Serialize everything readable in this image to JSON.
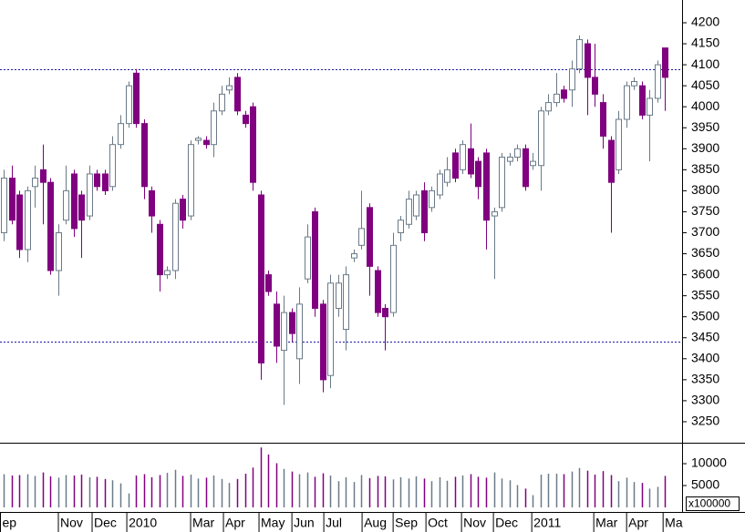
{
  "chart_data": {
    "type": "candlestick",
    "open": [
      3700,
      3830,
      3790,
      3660,
      3810,
      3850,
      3820,
      3610,
      3730,
      3840,
      3790,
      3740,
      3840,
      3840,
      3810,
      3910,
      3960,
      4080,
      3960,
      3800,
      3720,
      3600,
      3610,
      3780,
      3740,
      3920,
      3920,
      3910,
      3990,
      4040,
      4070,
      3980,
      4000,
      3790,
      3600,
      3530,
      3420,
      3510,
      3400,
      3590,
      3750,
      3530,
      3360,
      3520,
      3470,
      3640,
      3670,
      3760,
      3610,
      3520,
      3510,
      3700,
      3720,
      3740,
      3800,
      3760,
      3790,
      3820,
      3890,
      3850,
      3900,
      3870,
      3890,
      3740,
      3760,
      3870,
      3880,
      3900,
      3860,
      3860,
      3990,
      4010,
      4040,
      4040,
      4090,
      4150,
      4070,
      4010,
      3920,
      3850,
      3970,
      4050,
      4050,
      3980,
      4020,
      4140
    ],
    "high": [
      3850,
      3860,
      3800,
      3810,
      3860,
      3910,
      3830,
      3720,
      3860,
      3850,
      3800,
      3860,
      3850,
      3850,
      3930,
      3980,
      4060,
      4090,
      3970,
      3810,
      3730,
      3620,
      3780,
      3790,
      3920,
      3930,
      3930,
      4010,
      4050,
      4070,
      4080,
      3990,
      4010,
      3800,
      3610,
      3560,
      3550,
      3520,
      3570,
      3720,
      3760,
      3540,
      3600,
      3600,
      3620,
      3660,
      3800,
      3770,
      3620,
      3530,
      3700,
      3740,
      3800,
      3800,
      3820,
      3810,
      3850,
      3880,
      3900,
      3920,
      3960,
      3880,
      3900,
      3760,
      3890,
      3890,
      3910,
      3910,
      3890,
      4000,
      4030,
      4080,
      4050,
      4110,
      4170,
      4160,
      4150,
      4030,
      3930,
      3990,
      4060,
      4070,
      4060,
      4040,
      4110,
      4140
    ],
    "low": [
      3680,
      3720,
      3640,
      3630,
      3760,
      3720,
      3600,
      3550,
      3720,
      3690,
      3640,
      3730,
      3800,
      3790,
      3800,
      3900,
      3950,
      3950,
      3780,
      3700,
      3560,
      3590,
      3590,
      3710,
      3730,
      3910,
      3900,
      3880,
      3980,
      4030,
      3980,
      3950,
      3800,
      3350,
      3550,
      3390,
      3290,
      3440,
      3340,
      3580,
      3500,
      3320,
      3330,
      3500,
      3420,
      3630,
      3660,
      3550,
      3500,
      3420,
      3500,
      3680,
      3710,
      3730,
      3680,
      3750,
      3780,
      3810,
      3820,
      3840,
      3830,
      3780,
      3660,
      3590,
      3750,
      3860,
      3870,
      3800,
      3850,
      3800,
      3980,
      4000,
      4010,
      4000,
      4080,
      3980,
      4000,
      3900,
      3700,
      3840,
      3950,
      4040,
      3970,
      3870,
      4010,
      3990
    ],
    "close": [
      3830,
      3730,
      3660,
      3800,
      3830,
      3820,
      3610,
      3700,
      3800,
      3710,
      3730,
      3840,
      3810,
      3800,
      3910,
      3960,
      4050,
      3960,
      3810,
      3740,
      3600,
      3610,
      3770,
      3730,
      3910,
      3925,
      3910,
      3990,
      4030,
      4050,
      3990,
      3960,
      3820,
      3390,
      3560,
      3430,
      3510,
      3460,
      3530,
      3690,
      3520,
      3350,
      3580,
      3580,
      3600,
      3650,
      3710,
      3620,
      3510,
      3500,
      3670,
      3730,
      3780,
      3790,
      3700,
      3800,
      3840,
      3850,
      3830,
      3910,
      3840,
      3810,
      3730,
      3750,
      3880,
      3880,
      3900,
      3810,
      3870,
      3990,
      4010,
      4030,
      4020,
      4090,
      4160,
      4070,
      4030,
      3930,
      3820,
      3970,
      4050,
      4060,
      3980,
      4020,
      4100,
      4070
    ],
    "volume": [
      7600,
      7300,
      7400,
      7600,
      7200,
      8000,
      7100,
      6800,
      7400,
      7300,
      7500,
      6900,
      7000,
      6500,
      6200,
      5500,
      3200,
      7300,
      7600,
      6900,
      7400,
      7900,
      8600,
      7200,
      7500,
      6600,
      6800,
      7300,
      6500,
      5600,
      6500,
      7700,
      9100,
      13700,
      12100,
      10100,
      8800,
      8200,
      7600,
      8000,
      7000,
      7800,
      7300,
      6000,
      6900,
      5800,
      7400,
      6700,
      7200,
      7100,
      6400,
      6900,
      6600,
      7100,
      6600,
      6000,
      6900,
      6100,
      7000,
      7300,
      7600,
      7000,
      6800,
      8000,
      6600,
      6200,
      5100,
      4300,
      2800,
      7500,
      7700,
      7700,
      7600,
      8200,
      9000,
      8400,
      7500,
      8300,
      7400,
      6000,
      6800,
      5800,
      5600,
      4300,
      4700,
      7200
    ],
    "up_color": "#ffffff",
    "up_stroke": "#6a7a88",
    "down_color": "#800080",
    "ylim": [
      3200,
      4254.2
    ],
    "yticks": [
      3250,
      3300,
      3350,
      3400,
      3450,
      3500,
      3550,
      3600,
      3650,
      3700,
      3750,
      3800,
      3850,
      3900,
      3950,
      4000,
      4050,
      4100,
      4150,
      4200
    ],
    "volume_ylim": [
      0,
      14580
    ],
    "volume_yticks": [
      5000,
      10000
    ],
    "volume_unit": "x100000",
    "hlines": [
      4090,
      3440
    ],
    "hline_color": "#1a1aa0",
    "xlim": [
      -0.47,
      87.2
    ],
    "xticks": [
      {
        "value": -0.47,
        "label": "ep"
      },
      {
        "value": 7.03,
        "label": "Nov"
      },
      {
        "value": 11.37,
        "label": "Dec"
      },
      {
        "value": 15.83,
        "label": "2010"
      },
      {
        "value": 24.03,
        "label": "Mar"
      },
      {
        "value": 28.25,
        "label": "Apr"
      },
      {
        "value": 32.82,
        "label": "May"
      },
      {
        "value": 37.05,
        "label": "Jun"
      },
      {
        "value": 41.15,
        "label": "Jul"
      },
      {
        "value": 46.07,
        "label": "Aug"
      },
      {
        "value": 50.06,
        "label": "Sep"
      },
      {
        "value": 54.28,
        "label": "Oct"
      },
      {
        "value": 58.85,
        "label": "Nov"
      },
      {
        "value": 62.95,
        "label": "Dec"
      },
      {
        "value": 67.88,
        "label": "2011"
      },
      {
        "value": 75.85,
        "label": "Mar"
      },
      {
        "value": 80.07,
        "label": "Apr"
      },
      {
        "value": 84.76,
        "label": "Ma"
      }
    ]
  }
}
